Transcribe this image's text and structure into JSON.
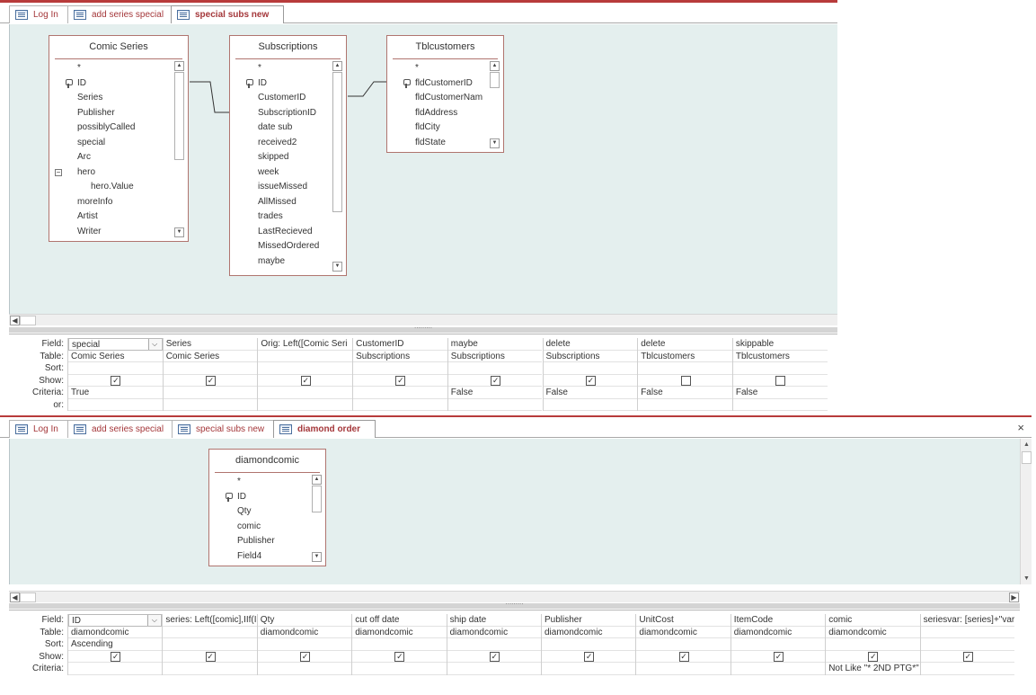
{
  "window1": {
    "tabs": [
      {
        "label": "Log In"
      },
      {
        "label": "add series special"
      },
      {
        "label": "special subs new"
      }
    ],
    "tables": [
      {
        "title": "Comic Series",
        "fields": [
          "*",
          "ID",
          "Series",
          "Publisher",
          "possiblyCalled",
          "special",
          "Arc",
          "hero",
          "hero.Value",
          "moreInfo",
          "Artist",
          "Writer"
        ]
      },
      {
        "title": "Subscriptions",
        "fields": [
          "*",
          "ID",
          "CustomerID",
          "SubscriptionID",
          "date sub",
          "received2",
          "skipped",
          "week",
          "issueMissed",
          "AllMissed",
          "trades",
          "LastRecieved",
          "MissedOrdered",
          "maybe"
        ]
      },
      {
        "title": "Tblcustomers",
        "fields": [
          "*",
          "fldCustomerID",
          "fldCustomerNam",
          "fldAddress",
          "fldCity",
          "fldState"
        ]
      }
    ],
    "grid": {
      "row_labels": [
        "Field:",
        "Table:",
        "Sort:",
        "Show:",
        "Criteria:",
        "or:"
      ],
      "columns": [
        {
          "field": "special",
          "table": "Comic Series",
          "sort": "",
          "show": true,
          "criteria": "True"
        },
        {
          "field": "Series",
          "table": "Comic Series",
          "sort": "",
          "show": true,
          "criteria": ""
        },
        {
          "field": "Orig: Left([Comic Seri",
          "table": "",
          "sort": "",
          "show": true,
          "criteria": ""
        },
        {
          "field": "CustomerID",
          "table": "Subscriptions",
          "sort": "",
          "show": true,
          "criteria": ""
        },
        {
          "field": "maybe",
          "table": "Subscriptions",
          "sort": "",
          "show": true,
          "criteria": "False"
        },
        {
          "field": "delete",
          "table": "Subscriptions",
          "sort": "",
          "show": true,
          "criteria": "False"
        },
        {
          "field": "delete",
          "table": "Tblcustomers",
          "sort": "",
          "show": false,
          "criteria": "False"
        },
        {
          "field": "skippable",
          "table": "Tblcustomers",
          "sort": "",
          "show": false,
          "criteria": "False"
        }
      ]
    }
  },
  "window2": {
    "tabs": [
      {
        "label": "Log In"
      },
      {
        "label": "add series special"
      },
      {
        "label": "special subs new"
      },
      {
        "label": "diamond order"
      }
    ],
    "close_glyph": "×",
    "tables": [
      {
        "title": "diamondcomic",
        "fields": [
          "*",
          "ID",
          "Qty",
          "comic",
          "Publisher",
          "Field4"
        ]
      }
    ],
    "grid": {
      "row_labels": [
        "Field:",
        "Table:",
        "Sort:",
        "Show:",
        "Criteria:"
      ],
      "columns": [
        {
          "field": "ID",
          "table": "diamondcomic",
          "sort": "Ascending",
          "show": true,
          "criteria": ""
        },
        {
          "field": "series: Left([comic],IIf(I",
          "table": "",
          "sort": "",
          "show": true,
          "criteria": ""
        },
        {
          "field": "Qty",
          "table": "diamondcomic",
          "sort": "",
          "show": true,
          "criteria": ""
        },
        {
          "field": "cut off date",
          "table": "diamondcomic",
          "sort": "",
          "show": true,
          "criteria": ""
        },
        {
          "field": "ship date",
          "table": "diamondcomic",
          "sort": "",
          "show": true,
          "criteria": ""
        },
        {
          "field": "Publisher",
          "table": "diamondcomic",
          "sort": "",
          "show": true,
          "criteria": ""
        },
        {
          "field": "UnitCost",
          "table": "diamondcomic",
          "sort": "",
          "show": true,
          "criteria": ""
        },
        {
          "field": "ItemCode",
          "table": "diamondcomic",
          "sort": "",
          "show": true,
          "criteria": ""
        },
        {
          "field": "comic",
          "table": "diamondcomic",
          "sort": "",
          "show": true,
          "criteria": "Not Like \"* 2ND PTG*\""
        },
        {
          "field": "seriesvar: [series]+\"vari",
          "table": "",
          "sort": "",
          "show": true,
          "criteria": ""
        }
      ]
    }
  },
  "glyphs": {
    "check": "✓",
    "up": "▲",
    "down": "▼",
    "left": "◀",
    "right": "▶",
    "dropdown": "⌵",
    "minus": "−"
  },
  "colors": {
    "accent": "#a4373a",
    "design_bg": "#e4efee",
    "table_border": "#b0756f"
  }
}
